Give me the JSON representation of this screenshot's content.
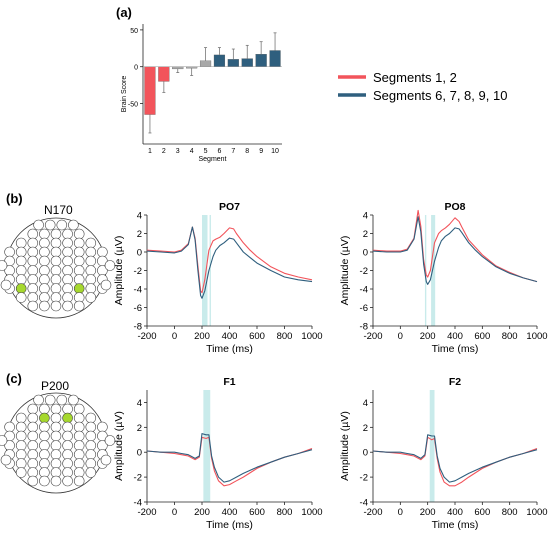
{
  "colors": {
    "red": "#f2545b",
    "blue": "#2f5f7e",
    "gray": "#a8a8a8",
    "shade": "#bfe8e8",
    "electrode_active": "#a6d82e"
  },
  "panel_a": {
    "label": "(a)",
    "legend": [
      "Segments 1, 2",
      "Segments 6, 7, 8, 9, 10"
    ],
    "chart_data": {
      "type": "bar",
      "categories": [
        "1",
        "2",
        "3",
        "4",
        "5",
        "6",
        "7",
        "8",
        "9",
        "10"
      ],
      "values": [
        -65,
        -20,
        -3,
        -2,
        8,
        16,
        10,
        11,
        17,
        22
      ],
      "errors": [
        25,
        15,
        5,
        10,
        18,
        10,
        14,
        18,
        17,
        24
      ],
      "groups": [
        "red",
        "red",
        "gray",
        "gray",
        "gray",
        "blue",
        "blue",
        "blue",
        "blue",
        "blue"
      ],
      "xlabel": "Segment",
      "ylabel": "Brain Score",
      "ylim": [
        -105,
        58
      ],
      "yticks": [
        -50,
        0,
        50
      ]
    }
  },
  "panel_b": {
    "label": "(b)",
    "component": "N170",
    "highlight_electrodes": [
      "PO7",
      "PO8"
    ],
    "plots": [
      {
        "title": "PO7",
        "chart_data": {
          "type": "line",
          "xlabel": "Time (ms)",
          "ylabel": "Amplitude (µV)",
          "xlim": [
            -200,
            1000
          ],
          "ylim": [
            -8,
            4
          ],
          "xticks": [
            -200,
            0,
            200,
            400,
            600,
            800,
            1000
          ],
          "yticks": [
            -8,
            -6,
            -4,
            -2,
            0,
            2,
            4
          ],
          "shaded": [
            [
              200,
              240
            ],
            [
              255,
              265
            ]
          ],
          "series": [
            {
              "color": "red",
              "x": [
                -200,
                -100,
                0,
                50,
                100,
                130,
                150,
                170,
                190,
                200,
                220,
                250,
                280,
                300,
                330,
                360,
                400,
                430,
                450,
                500,
                550,
                600,
                700,
                800,
                900,
                1000
              ],
              "y": [
                0.2,
                0.1,
                0.0,
                0.2,
                0.9,
                2.7,
                1.5,
                -1.5,
                -4.2,
                -4.4,
                -3.0,
                0.2,
                1.2,
                1.4,
                1.6,
                2.0,
                2.6,
                2.5,
                2.0,
                1.0,
                0.2,
                -0.5,
                -1.6,
                -2.3,
                -2.7,
                -3.0
              ]
            },
            {
              "color": "blue",
              "x": [
                -200,
                -100,
                0,
                50,
                100,
                130,
                150,
                170,
                190,
                200,
                220,
                250,
                280,
                300,
                330,
                360,
                400,
                430,
                450,
                500,
                550,
                600,
                700,
                800,
                900,
                1000
              ],
              "y": [
                0.1,
                0.0,
                -0.1,
                0.1,
                0.8,
                2.7,
                1.3,
                -2.0,
                -4.7,
                -5.0,
                -4.2,
                -2.0,
                -0.5,
                0.2,
                0.7,
                1.0,
                1.5,
                1.4,
                1.0,
                0.0,
                -0.6,
                -1.2,
                -2.0,
                -2.7,
                -3.0,
                -3.2
              ]
            }
          ]
        }
      },
      {
        "title": "PO8",
        "chart_data": {
          "type": "line",
          "xlabel": "Time (ms)",
          "ylabel": "Amplitude (µV)",
          "xlim": [
            -200,
            1000
          ],
          "ylim": [
            -8,
            4
          ],
          "xticks": [
            -200,
            0,
            200,
            400,
            600,
            800,
            1000
          ],
          "yticks": [
            -8,
            -6,
            -4,
            -2,
            0,
            2,
            4
          ],
          "shaded": [
            [
              180,
              190
            ],
            [
              225,
              255
            ]
          ],
          "series": [
            {
              "color": "red",
              "x": [
                -200,
                -100,
                0,
                50,
                100,
                130,
                150,
                170,
                190,
                200,
                220,
                250,
                280,
                300,
                330,
                360,
                400,
                430,
                450,
                500,
                550,
                600,
                700,
                800,
                900,
                1000
              ],
              "y": [
                0.2,
                0.1,
                0.1,
                0.3,
                1.5,
                4.5,
                2.8,
                -0.8,
                -2.5,
                -2.7,
                -2.0,
                1.0,
                2.0,
                2.3,
                2.6,
                3.0,
                3.7,
                3.3,
                2.7,
                1.3,
                0.5,
                -0.3,
                -1.5,
                -2.2,
                -2.8,
                -3.2
              ]
            },
            {
              "color": "blue",
              "x": [
                -200,
                -100,
                0,
                50,
                100,
                130,
                150,
                170,
                190,
                200,
                220,
                250,
                280,
                300,
                330,
                360,
                400,
                430,
                450,
                500,
                550,
                600,
                700,
                800,
                900,
                1000
              ],
              "y": [
                0.1,
                0.0,
                0.0,
                0.2,
                1.4,
                3.8,
                2.2,
                -1.3,
                -3.2,
                -3.5,
                -3.0,
                -1.0,
                0.5,
                1.2,
                1.7,
                2.0,
                2.6,
                2.5,
                2.1,
                1.0,
                0.2,
                -0.5,
                -1.6,
                -2.3,
                -2.8,
                -3.2
              ]
            }
          ]
        }
      }
    ]
  },
  "panel_c": {
    "label": "(c)",
    "component": "P200",
    "highlight_electrodes": [
      "F1",
      "F2"
    ],
    "plots": [
      {
        "title": "F1",
        "chart_data": {
          "type": "line",
          "xlabel": "Time (ms)",
          "ylabel": "Amplitude (µV)",
          "xlim": [
            -200,
            1000
          ],
          "ylim": [
            -4,
            5
          ],
          "xticks": [
            -200,
            0,
            200,
            400,
            600,
            800,
            1000
          ],
          "yticks": [
            -4,
            -2,
            0,
            2,
            4
          ],
          "shaded": [
            [
              210,
              260
            ]
          ],
          "series": [
            {
              "color": "red",
              "x": [
                -200,
                -100,
                0,
                50,
                100,
                150,
                180,
                200,
                230,
                250,
                270,
                290,
                320,
                360,
                400,
                450,
                500,
                600,
                700,
                800,
                900,
                1000
              ],
              "y": [
                0.1,
                0.0,
                -0.1,
                -0.2,
                -0.3,
                -0.6,
                -0.4,
                1.2,
                1.1,
                1.2,
                -0.5,
                -1.5,
                -2.3,
                -2.7,
                -2.6,
                -2.3,
                -2.0,
                -1.3,
                -0.8,
                -0.4,
                -0.1,
                0.3
              ]
            },
            {
              "color": "blue",
              "x": [
                -200,
                -100,
                0,
                50,
                100,
                150,
                180,
                200,
                230,
                250,
                270,
                290,
                320,
                360,
                400,
                450,
                500,
                600,
                700,
                800,
                900,
                1000
              ],
              "y": [
                0.1,
                0.0,
                0.0,
                -0.1,
                -0.2,
                -0.5,
                -0.3,
                1.5,
                1.4,
                1.4,
                -0.3,
                -1.2,
                -2.0,
                -2.4,
                -2.3,
                -2.0,
                -1.7,
                -1.2,
                -0.8,
                -0.4,
                -0.1,
                0.2
              ]
            }
          ]
        }
      },
      {
        "title": "F2",
        "chart_data": {
          "type": "line",
          "xlabel": "Time (ms)",
          "ylabel": "Amplitude (µV)",
          "xlim": [
            -200,
            1000
          ],
          "ylim": [
            -4,
            5
          ],
          "xticks": [
            -200,
            0,
            200,
            400,
            600,
            800,
            1000
          ],
          "yticks": [
            -4,
            -2,
            0,
            2,
            4
          ],
          "shaded": [
            [
              215,
              250
            ]
          ],
          "series": [
            {
              "color": "red",
              "x": [
                -200,
                -100,
                0,
                50,
                100,
                150,
                180,
                200,
                230,
                250,
                270,
                290,
                320,
                360,
                400,
                450,
                500,
                600,
                700,
                800,
                900,
                1000
              ],
              "y": [
                0.1,
                0.0,
                -0.1,
                -0.2,
                -0.3,
                -0.6,
                -0.3,
                1.2,
                1.0,
                1.1,
                -0.5,
                -1.6,
                -2.4,
                -2.7,
                -2.7,
                -2.4,
                -2.0,
                -1.3,
                -0.8,
                -0.4,
                -0.1,
                0.3
              ]
            },
            {
              "color": "blue",
              "x": [
                -200,
                -100,
                0,
                50,
                100,
                150,
                180,
                200,
                230,
                250,
                270,
                290,
                320,
                360,
                400,
                450,
                500,
                600,
                700,
                800,
                900,
                1000
              ],
              "y": [
                0.1,
                0.0,
                0.0,
                -0.1,
                -0.2,
                -0.5,
                -0.2,
                1.4,
                1.3,
                1.3,
                -0.3,
                -1.3,
                -2.0,
                -2.4,
                -2.3,
                -2.0,
                -1.7,
                -1.2,
                -0.8,
                -0.4,
                -0.1,
                0.2
              ]
            }
          ]
        }
      }
    ]
  }
}
